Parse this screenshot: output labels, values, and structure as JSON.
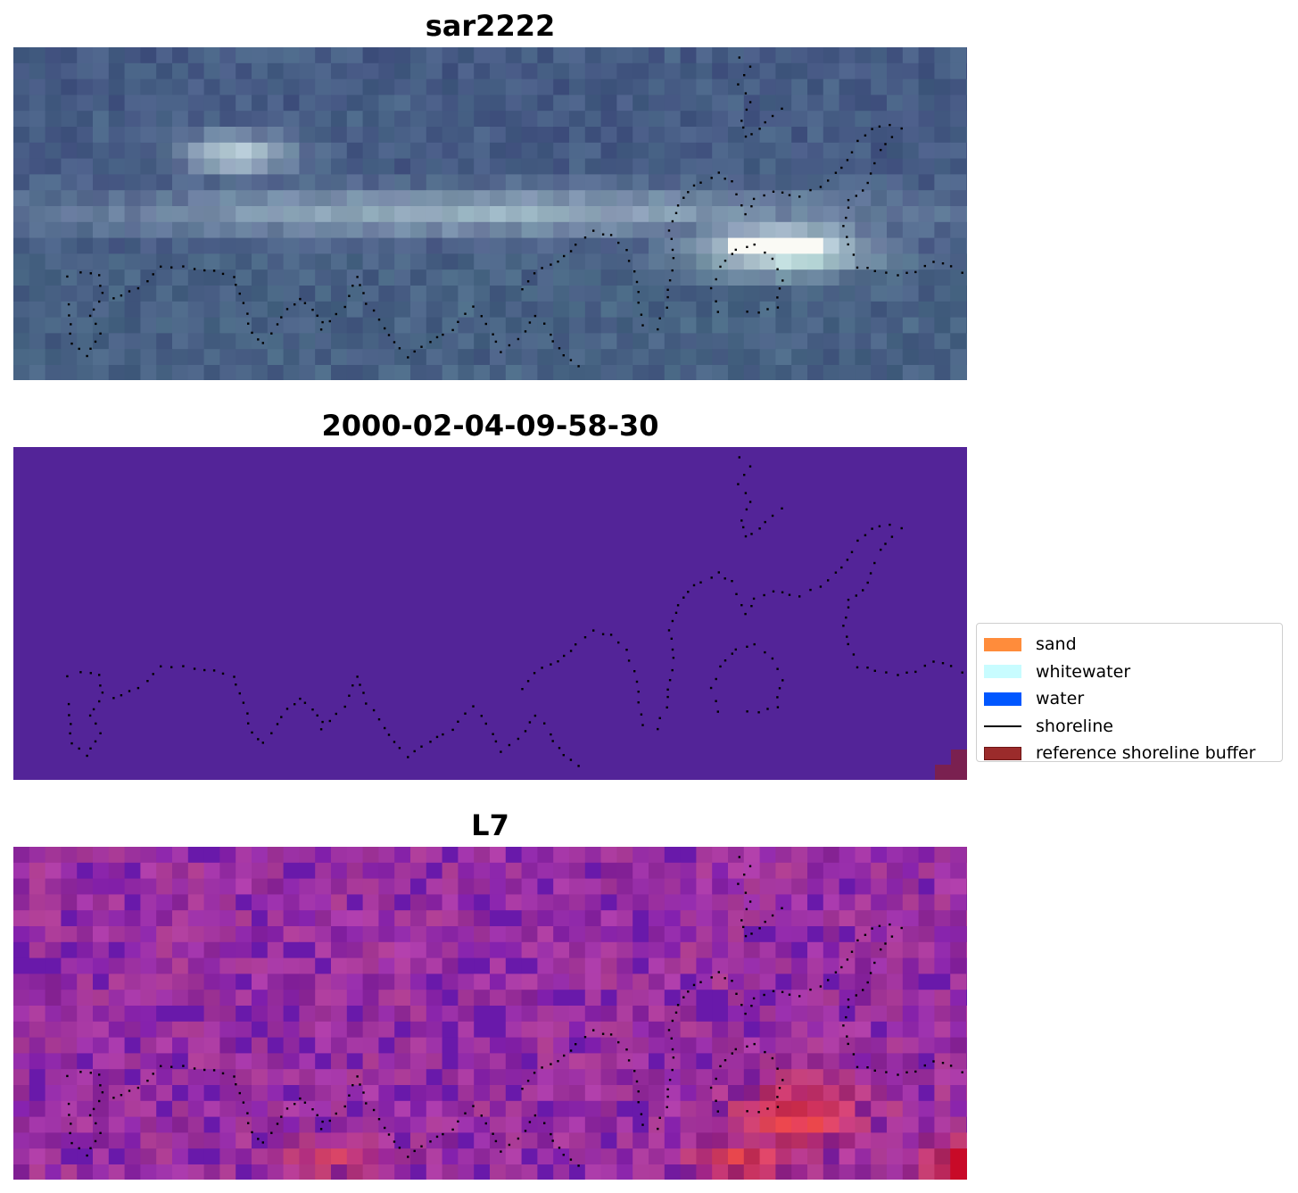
{
  "panels": [
    {
      "title": "sar2222",
      "style": "sar"
    },
    {
      "title": "2000-02-04-09-58-30",
      "style": "class"
    },
    {
      "title": "L7",
      "style": "index"
    }
  ],
  "legend": {
    "items": [
      {
        "label": "sand",
        "color": "#ff8c3b",
        "kind": "patch"
      },
      {
        "label": "whitewater",
        "color": "#c8fcff",
        "kind": "patch"
      },
      {
        "label": "water",
        "color": "#0057ff",
        "kind": "patch"
      },
      {
        "label": "shoreline",
        "color": "#000000",
        "kind": "line"
      },
      {
        "label": "reference shoreline buffer",
        "color": "#9b2b2b",
        "edge": "#6e1414",
        "kind": "patch"
      }
    ]
  },
  "colors": {
    "class_background": "#532498",
    "buffer_overlay": "#7a2050",
    "shoreline_dots": "#000000"
  }
}
